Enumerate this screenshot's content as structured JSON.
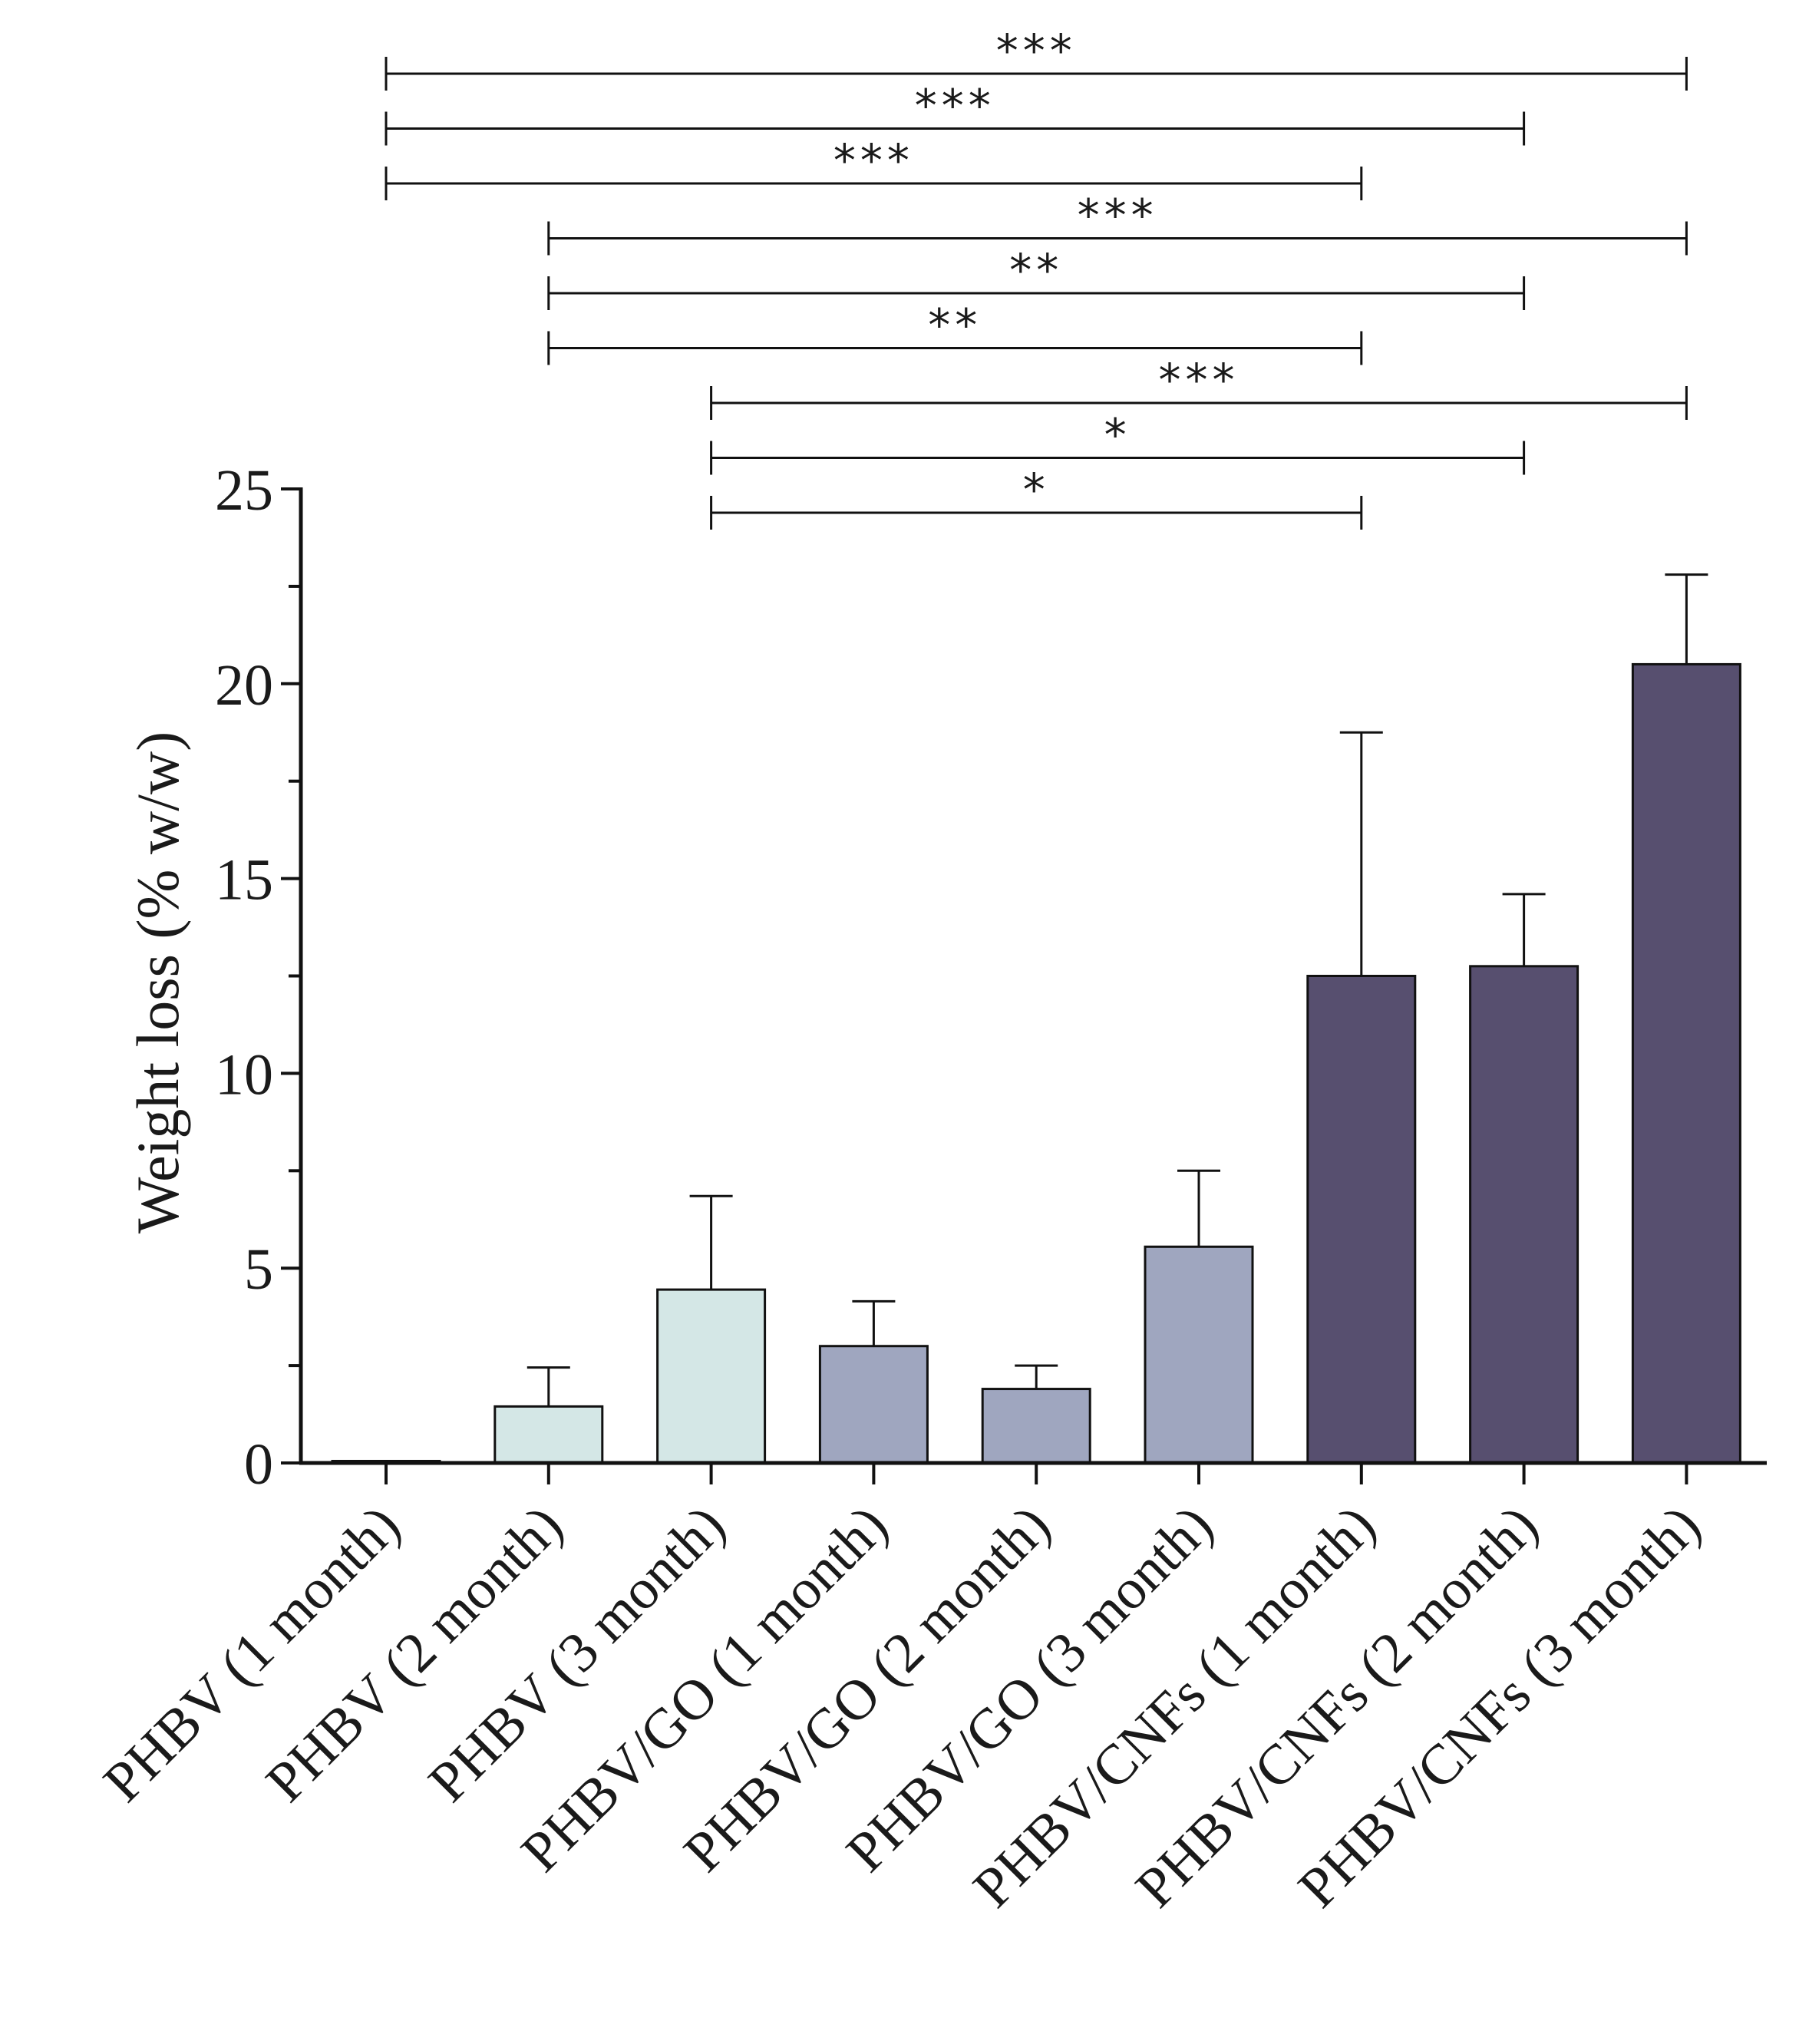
{
  "chart_data": {
    "type": "bar",
    "title": "",
    "xlabel": "",
    "ylabel": "Weight loss (% w/w)",
    "ylim": [
      0,
      25
    ],
    "yticks": [
      "0",
      "5",
      "10",
      "15",
      "20",
      "25"
    ],
    "grid": false,
    "categories": [
      "PHBV (1 month)",
      "PHBV (2 month)",
      "PHBV (3 month)",
      "PHBV/GO (1 month)",
      "PHBV/GO (2 month)",
      "PHBV/GO (3 month)",
      "PHBV/CNFs (1 month)",
      "PHBV/CNFs (2 month)",
      "PHBV/CNFs (3 month)"
    ],
    "values": [
      0.05,
      1.45,
      4.45,
      3.0,
      1.9,
      5.55,
      12.5,
      12.75,
      20.5
    ],
    "errors": [
      0.0,
      1.0,
      2.4,
      1.15,
      0.6,
      1.95,
      6.25,
      1.85,
      2.3
    ],
    "groups": [
      "PHBV",
      "PHBV",
      "PHBV",
      "PHBV/GO",
      "PHBV/GO",
      "PHBV/GO",
      "PHBV/CNFs",
      "PHBV/CNFs",
      "PHBV/CNFs"
    ],
    "colors": {
      "PHBV": "#d4e7e6",
      "PHBV/GO": "#9fa6bf",
      "PHBV/CNFs": "#574f6f",
      "stroke": "#111111"
    },
    "significance": [
      {
        "from": 0,
        "to": 8,
        "label": "***"
      },
      {
        "from": 0,
        "to": 7,
        "label": "***"
      },
      {
        "from": 0,
        "to": 6,
        "label": "***"
      },
      {
        "from": 1,
        "to": 8,
        "label": "***"
      },
      {
        "from": 1,
        "to": 7,
        "label": "**"
      },
      {
        "from": 1,
        "to": 6,
        "label": "**"
      },
      {
        "from": 2,
        "to": 8,
        "label": "***"
      },
      {
        "from": 2,
        "to": 7,
        "label": "*"
      },
      {
        "from": 2,
        "to": 6,
        "label": "*"
      }
    ]
  }
}
